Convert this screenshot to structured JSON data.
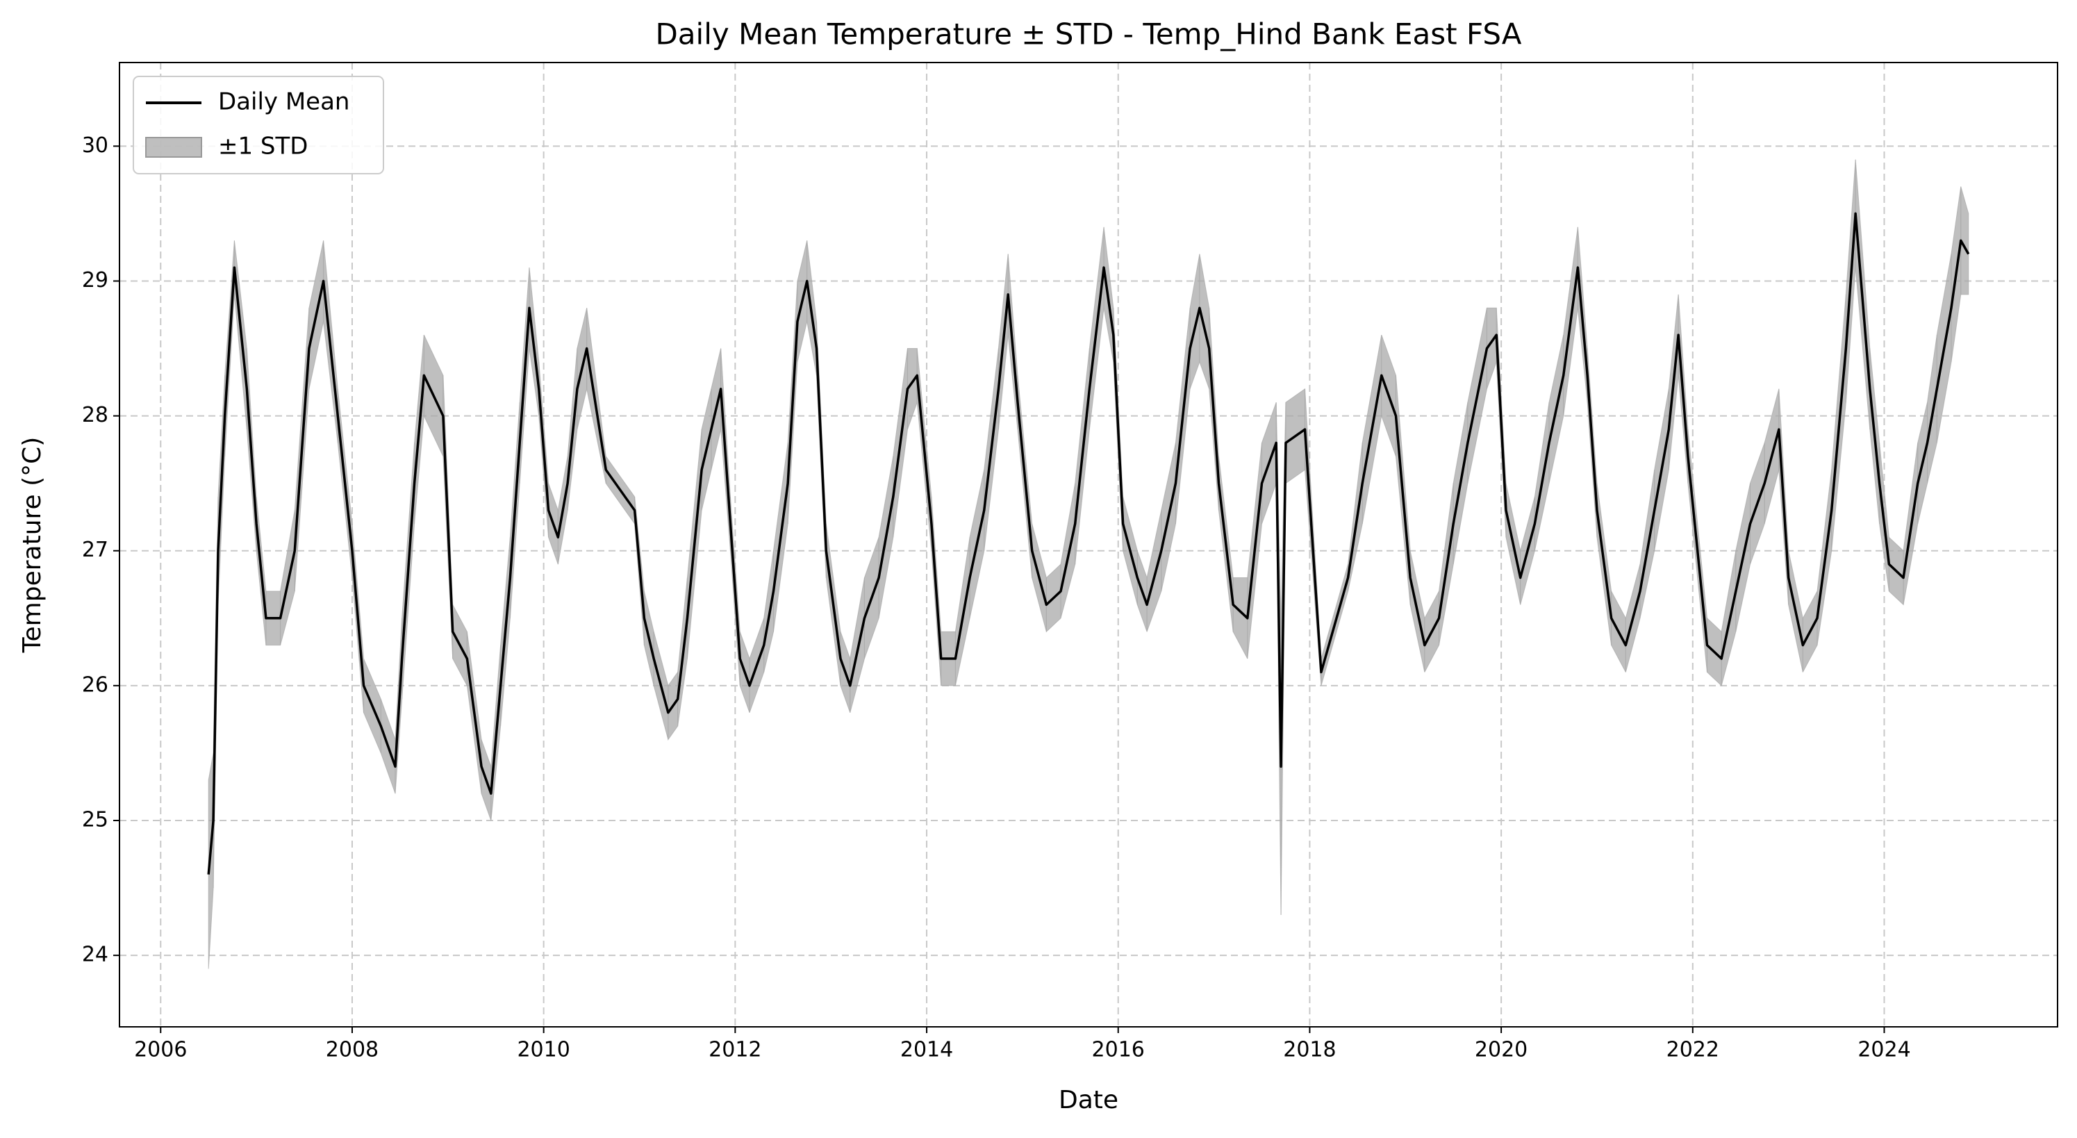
{
  "chart_data": {
    "type": "line",
    "title": "Daily Mean Temperature ± STD - Temp_Hind Bank East FSA",
    "xlabel": "Date",
    "ylabel": "Temperature (°C)",
    "x": [
      2006.5,
      2006.55,
      2006.6,
      2006.67,
      2006.77,
      2006.9,
      2007.0,
      2007.1,
      2007.25,
      2007.4,
      2007.55,
      2007.7,
      2007.85,
      2008.0,
      2008.12,
      2008.3,
      2008.45,
      2008.52,
      2008.65,
      2008.75,
      2008.95,
      2009.05,
      2009.2,
      2009.35,
      2009.45,
      2009.55,
      2009.65,
      2009.75,
      2009.85,
      2009.95,
      2010.05,
      2010.15,
      2010.25,
      2010.35,
      2010.45,
      2010.65,
      2010.95,
      2011.05,
      2011.15,
      2011.3,
      2011.4,
      2011.5,
      2011.65,
      2011.75,
      2011.85,
      2011.95,
      2012.05,
      2012.15,
      2012.3,
      2012.4,
      2012.55,
      2012.65,
      2012.75,
      2012.85,
      2012.95,
      2013.1,
      2013.2,
      2013.35,
      2013.5,
      2013.65,
      2013.8,
      2013.9,
      2014.05,
      2014.15,
      2014.3,
      2014.45,
      2014.6,
      2014.75,
      2014.85,
      2014.95,
      2015.1,
      2015.25,
      2015.4,
      2015.55,
      2015.7,
      2015.85,
      2015.95,
      2016.05,
      2016.2,
      2016.3,
      2016.45,
      2016.6,
      2016.75,
      2016.85,
      2016.95,
      2017.05,
      2017.2,
      2017.35,
      2017.5,
      2017.65,
      2017.7,
      2017.75,
      2017.95,
      2018.12,
      2018.4,
      2018.55,
      2018.75,
      2018.9,
      2019.05,
      2019.2,
      2019.35,
      2019.5,
      2019.65,
      2019.85,
      2019.95,
      2020.05,
      2020.2,
      2020.35,
      2020.5,
      2020.65,
      2020.8,
      2020.9,
      2021.0,
      2021.15,
      2021.3,
      2021.45,
      2021.6,
      2021.75,
      2021.85,
      2021.95,
      2022.15,
      2022.3,
      2022.45,
      2022.6,
      2022.75,
      2022.9,
      2023.0,
      2023.15,
      2023.3,
      2023.45,
      2023.6,
      2023.7,
      2023.85,
      2023.95,
      2024.05,
      2024.2,
      2024.35,
      2024.45,
      2024.55,
      2024.7,
      2024.8,
      2024.88
    ],
    "series": [
      {
        "name": "Daily Mean",
        "color": "#000000",
        "values": [
          24.6,
          25.0,
          27.0,
          28.0,
          29.1,
          28.2,
          27.2,
          26.5,
          26.5,
          27.0,
          28.5,
          29.0,
          28.0,
          27.0,
          26.0,
          25.7,
          25.4,
          26.2,
          27.5,
          28.3,
          28.0,
          26.4,
          26.2,
          25.4,
          25.2,
          26.0,
          26.8,
          27.8,
          28.8,
          28.2,
          27.3,
          27.1,
          27.5,
          28.2,
          28.5,
          27.6,
          27.3,
          26.5,
          26.2,
          25.8,
          25.9,
          26.5,
          27.6,
          27.9,
          28.2,
          27.2,
          26.2,
          26.0,
          26.3,
          26.7,
          27.5,
          28.7,
          29.0,
          28.5,
          27.0,
          26.2,
          26.0,
          26.5,
          26.8,
          27.4,
          28.2,
          28.3,
          27.2,
          26.2,
          26.2,
          26.8,
          27.3,
          28.2,
          28.9,
          28.1,
          27.0,
          26.6,
          26.7,
          27.2,
          28.2,
          29.1,
          28.6,
          27.2,
          26.8,
          26.6,
          27.0,
          27.5,
          28.5,
          28.8,
          28.5,
          27.5,
          26.6,
          26.5,
          27.5,
          27.8,
          25.4,
          27.8,
          27.9,
          26.1,
          26.8,
          27.5,
          28.3,
          28.0,
          26.8,
          26.3,
          26.5,
          27.2,
          27.8,
          28.5,
          28.6,
          27.3,
          26.8,
          27.2,
          27.8,
          28.3,
          29.1,
          28.3,
          27.3,
          26.5,
          26.3,
          26.7,
          27.3,
          27.9,
          28.6,
          27.7,
          26.3,
          26.2,
          26.7,
          27.2,
          27.5,
          27.9,
          26.8,
          26.3,
          26.5,
          27.3,
          28.5,
          29.5,
          28.2,
          27.5,
          26.9,
          26.8,
          27.5,
          27.8,
          28.2,
          28.8,
          29.3,
          29.2
        ]
      },
      {
        "name": "±1 STD",
        "color": "#aaaaaa",
        "values": [
          0.7,
          0.5,
          0.4,
          0.3,
          0.2,
          0.3,
          0.2,
          0.2,
          0.2,
          0.3,
          0.3,
          0.3,
          0.2,
          0.2,
          0.2,
          0.2,
          0.2,
          0.3,
          0.3,
          0.3,
          0.3,
          0.2,
          0.2,
          0.2,
          0.2,
          0.3,
          0.3,
          0.3,
          0.3,
          0.2,
          0.2,
          0.2,
          0.2,
          0.3,
          0.3,
          0.1,
          0.1,
          0.2,
          0.2,
          0.2,
          0.2,
          0.3,
          0.3,
          0.3,
          0.3,
          0.2,
          0.2,
          0.2,
          0.2,
          0.3,
          0.3,
          0.3,
          0.3,
          0.2,
          0.2,
          0.2,
          0.2,
          0.3,
          0.3,
          0.3,
          0.3,
          0.2,
          0.2,
          0.2,
          0.2,
          0.3,
          0.3,
          0.3,
          0.3,
          0.2,
          0.2,
          0.2,
          0.2,
          0.3,
          0.3,
          0.3,
          0.2,
          0.2,
          0.2,
          0.2,
          0.3,
          0.3,
          0.3,
          0.4,
          0.3,
          0.2,
          0.2,
          0.3,
          0.3,
          0.3,
          1.1,
          0.3,
          0.3,
          0.1,
          0.1,
          0.3,
          0.3,
          0.3,
          0.2,
          0.2,
          0.2,
          0.3,
          0.3,
          0.3,
          0.2,
          0.2,
          0.2,
          0.2,
          0.3,
          0.3,
          0.3,
          0.2,
          0.2,
          0.2,
          0.2,
          0.2,
          0.3,
          0.3,
          0.3,
          0.2,
          0.2,
          0.2,
          0.3,
          0.3,
          0.3,
          0.3,
          0.2,
          0.2,
          0.2,
          0.3,
          0.4,
          0.4,
          0.3,
          0.3,
          0.2,
          0.2,
          0.3,
          0.3,
          0.4,
          0.4,
          0.4,
          0.3
        ]
      }
    ],
    "xlim": [
      2005.57,
      2025.81
    ],
    "xticks": [
      2006,
      2008,
      2010,
      2012,
      2014,
      2016,
      2018,
      2020,
      2022,
      2024
    ],
    "ylim": [
      23.47,
      30.62
    ],
    "yticks": [
      24,
      25,
      26,
      27,
      28,
      29,
      30
    ],
    "grid": true,
    "legend": "upper left"
  }
}
